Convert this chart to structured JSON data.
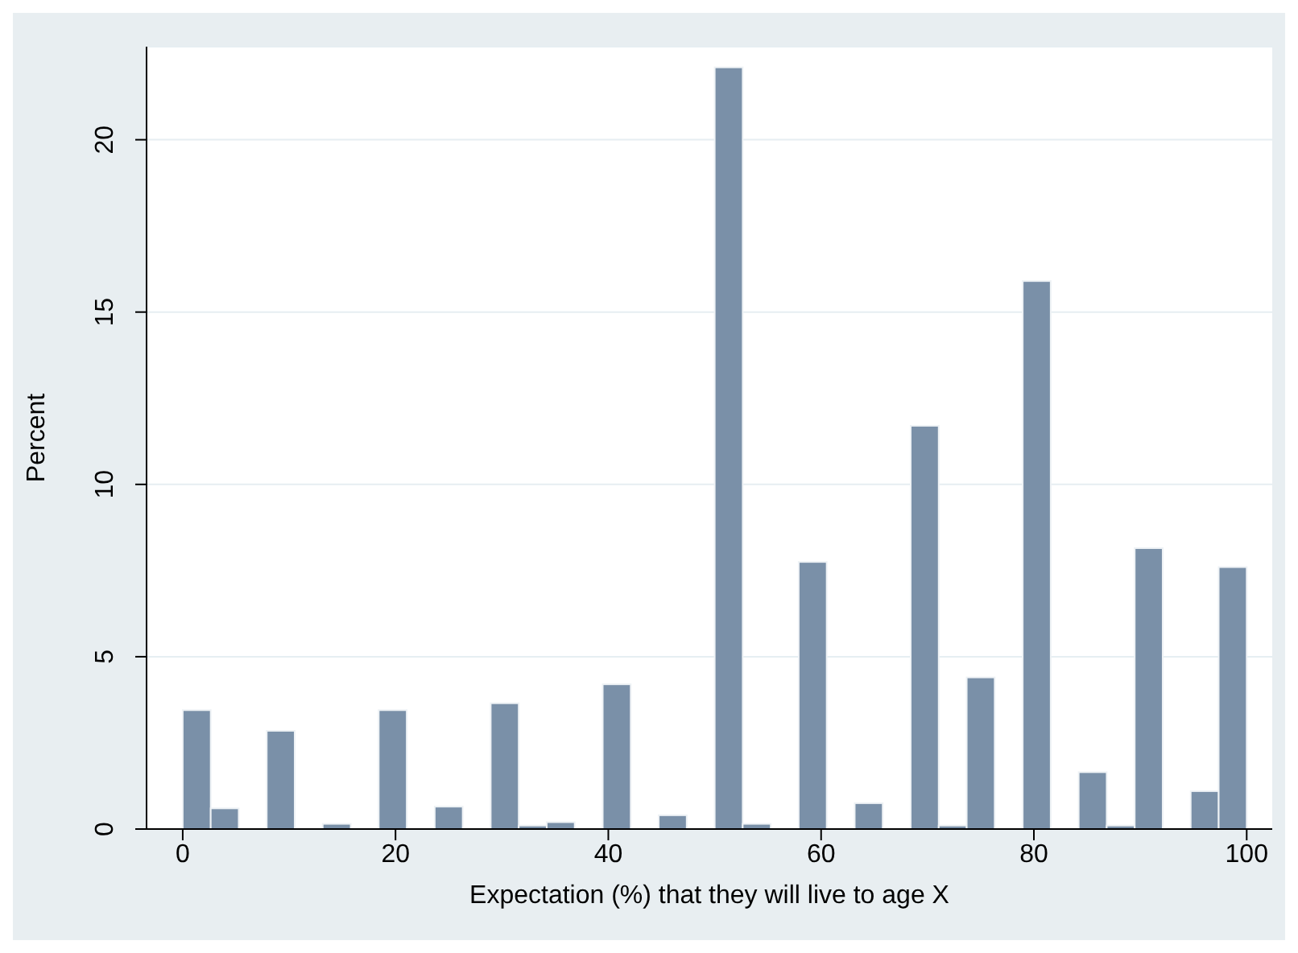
{
  "chart_data": {
    "type": "histogram",
    "xlabel": "Expectation (%) that they will live to age X",
    "ylabel": "Percent",
    "color": "#7a90a8",
    "bins": [
      0,
      2.632,
      5.263,
      7.895,
      10.526,
      13.158,
      15.789,
      18.421,
      21.053,
      23.684,
      26.316,
      28.947,
      31.579,
      34.211,
      36.842,
      39.474,
      42.105,
      44.737,
      47.368,
      50,
      52.632,
      55.263,
      57.895,
      60.526,
      63.158,
      65.789,
      68.421,
      71.053,
      73.684,
      76.316,
      78.947,
      81.579,
      84.211,
      86.842,
      89.474,
      92.105,
      94.737,
      97.368,
      100
    ],
    "values": [
      3.45,
      0.6,
      null,
      2.85,
      null,
      0.15,
      0,
      3.45,
      0,
      0.65,
      null,
      3.65,
      0.1,
      0.2,
      0,
      4.2,
      0,
      0.4,
      0,
      22.1,
      0.15,
      0,
      7.75,
      null,
      0.75,
      null,
      11.7,
      0.1,
      4.4,
      null,
      15.9,
      0,
      1.65,
      0.1,
      8.15,
      0,
      1.1,
      7.6
    ],
    "xlim": [
      -3.4,
      102.4
    ],
    "xticks": [
      0,
      20,
      40,
      60,
      80,
      100
    ],
    "ylim": [
      0,
      22.7
    ],
    "yticks": [
      0,
      5,
      10,
      15,
      20
    ],
    "grid": "y",
    "legend": false
  }
}
